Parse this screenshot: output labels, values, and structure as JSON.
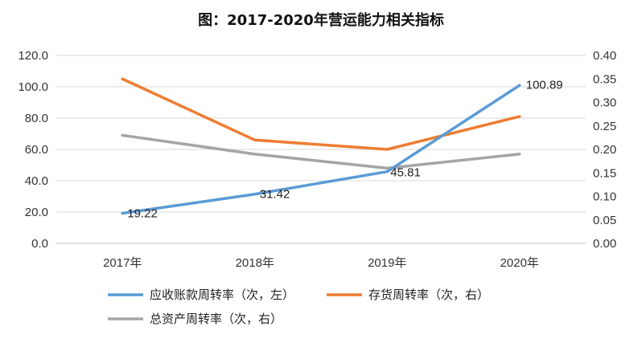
{
  "chart_data": {
    "type": "line",
    "title": "图：2017-2020年营运能力相关指标",
    "categories": [
      "2017年",
      "2018年",
      "2019年",
      "2020年"
    ],
    "y_left": {
      "min": 0,
      "max": 120,
      "step": 20,
      "tick_labels": [
        "0.0",
        "20.0",
        "40.0",
        "60.0",
        "80.0",
        "100.0",
        "120.0"
      ]
    },
    "y_right": {
      "min": 0,
      "max": 0.4,
      "step": 0.05,
      "tick_labels": [
        "0.00",
        "0.05",
        "0.10",
        "0.15",
        "0.20",
        "0.25",
        "0.30",
        "0.35",
        "0.40"
      ]
    },
    "grid": true,
    "legend_position": "bottom",
    "series": [
      {
        "name": "应收账款周转率（次，左）",
        "axis": "left",
        "color": "#5b9bd5",
        "values": [
          19.22,
          31.42,
          45.81,
          100.89
        ],
        "data_labels": [
          "19.22",
          "31.42",
          "45.81",
          "100.89"
        ]
      },
      {
        "name": "存货周转率（次，右）",
        "axis": "right",
        "color": "#ed7d31",
        "values": [
          0.35,
          0.22,
          0.2,
          0.27
        ]
      },
      {
        "name": "总资产周转率（次，右）",
        "axis": "right",
        "color": "#a5a5a5",
        "values": [
          0.23,
          0.19,
          0.16,
          0.19
        ]
      }
    ]
  }
}
